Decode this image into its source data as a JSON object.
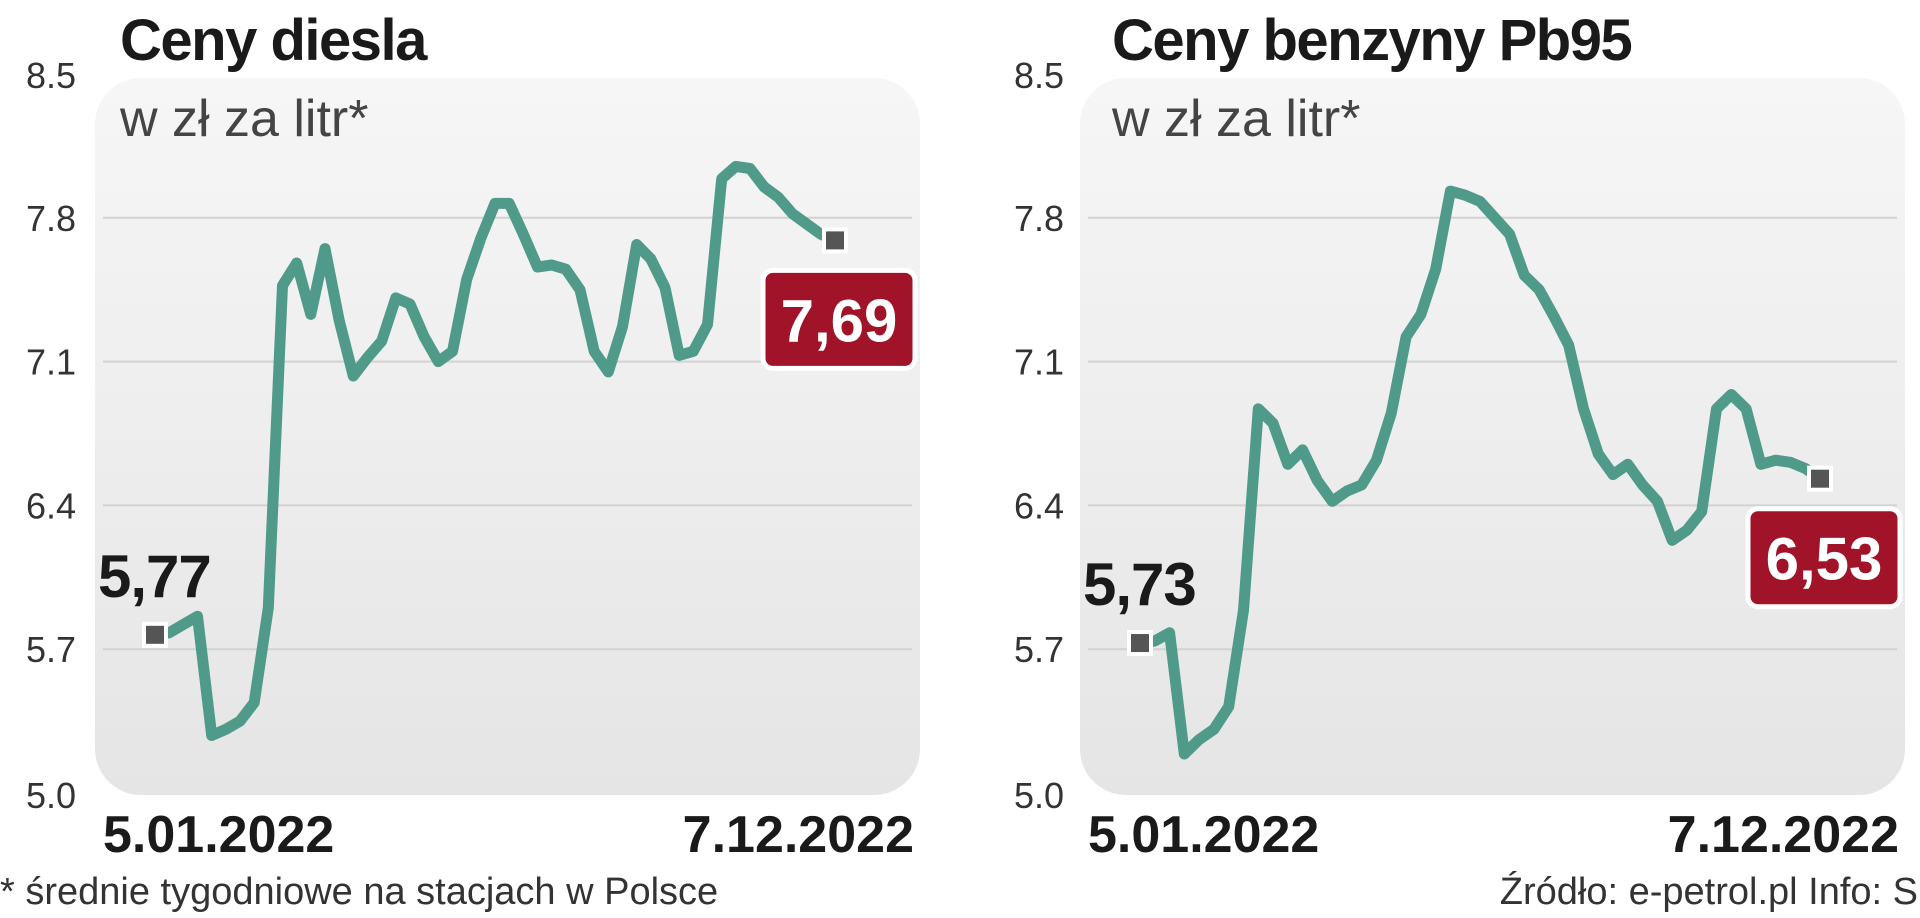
{
  "footer": {
    "note": "* średnie tygodniowe na stacjach w Polsce",
    "source": "Źródło: e-petrol.pl   Info: S"
  },
  "colors": {
    "line": "#4f9a89",
    "panel_bg_top": "#f6f6f6",
    "panel_bg_bottom": "#e6e6e6",
    "grid": "#d2d2d2",
    "end_badge": "#a01328",
    "marker": "#555555"
  },
  "chart_data": [
    {
      "type": "line",
      "title": "Ceny diesla",
      "subtitle": "w zł za litr*",
      "xlabel": "",
      "ylabel": "",
      "ylim": [
        5.0,
        8.5
      ],
      "yticks": [
        "8.5",
        "7.8",
        "7.1",
        "6.4",
        "5.7",
        "5.0"
      ],
      "yticks_values": [
        8.5,
        7.8,
        7.1,
        6.4,
        5.7,
        5.0
      ],
      "x_start_label": "5.01.2022",
      "x_end_label": "7.12.2022",
      "start_value_label": "5,77",
      "end_value_label": "7,69",
      "grid": true,
      "series": [
        {
          "values": [
            5.77,
            5.78,
            5.82,
            5.86,
            5.28,
            5.31,
            5.35,
            5.44,
            5.9,
            7.47,
            7.58,
            7.33,
            7.65,
            7.3,
            7.03,
            7.12,
            7.2,
            7.41,
            7.38,
            7.22,
            7.1,
            7.15,
            7.5,
            7.7,
            7.87,
            7.87,
            7.72,
            7.56,
            7.57,
            7.55,
            7.45,
            7.15,
            7.05,
            7.27,
            7.67,
            7.6,
            7.46,
            7.13,
            7.15,
            7.28,
            7.99,
            8.05,
            8.04,
            7.95,
            7.9,
            7.82,
            7.77,
            7.72,
            7.69
          ]
        }
      ]
    },
    {
      "type": "line",
      "title": "Ceny benzyny Pb95",
      "subtitle": "w zł za litr*",
      "xlabel": "",
      "ylabel": "",
      "ylim": [
        5.0,
        8.5
      ],
      "yticks": [
        "8.5",
        "7.8",
        "7.1",
        "6.4",
        "5.7",
        "5.0"
      ],
      "yticks_values": [
        8.5,
        7.8,
        7.1,
        6.4,
        5.7,
        5.0
      ],
      "x_start_label": "5.01.2022",
      "x_end_label": "7.12.2022",
      "start_value_label": "5,73",
      "end_value_label": "6,53",
      "grid": true,
      "series": [
        {
          "values": [
            5.73,
            5.74,
            5.78,
            5.19,
            5.26,
            5.31,
            5.42,
            5.89,
            6.87,
            6.8,
            6.6,
            6.67,
            6.52,
            6.42,
            6.47,
            6.5,
            6.62,
            6.85,
            7.22,
            7.33,
            7.55,
            7.93,
            7.91,
            7.88,
            7.8,
            7.72,
            7.52,
            7.45,
            7.32,
            7.18,
            6.87,
            6.65,
            6.55,
            6.6,
            6.5,
            6.42,
            6.23,
            6.28,
            6.37,
            6.87,
            6.94,
            6.87,
            6.6,
            6.62,
            6.61,
            6.58,
            6.53
          ]
        }
      ]
    }
  ]
}
